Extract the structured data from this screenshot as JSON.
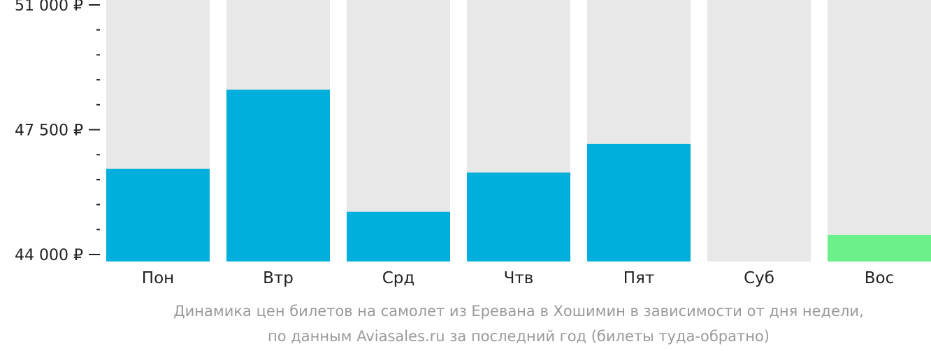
{
  "chart_data": {
    "type": "bar",
    "categories": [
      "Пон",
      "Втр",
      "Срд",
      "Чтв",
      "Пят",
      "Суб",
      "Вос"
    ],
    "values": [
      46400,
      48620,
      45200,
      46300,
      47100,
      null,
      44550
    ],
    "ylim": [
      44000,
      51000
    ],
    "yticks": {
      "major": [
        44000,
        47500,
        51000
      ],
      "labels": [
        "44 000 ₽",
        "47 500 ₽",
        "51 000 ₽"
      ],
      "minor_step": 700
    },
    "colors": {
      "bar": "#00afdc",
      "bar_lowest": "#6cf08a",
      "background_column": "#e8e8e8",
      "axis": "#222222"
    },
    "lowest_category": "Вос",
    "caption": {
      "line1": "Динамика цен билетов на самолет из Еревана в Хошимин в зависимости от дня недели,",
      "line2": "по данным Aviasales.ru за последний год (билеты туда-обратно)"
    }
  }
}
